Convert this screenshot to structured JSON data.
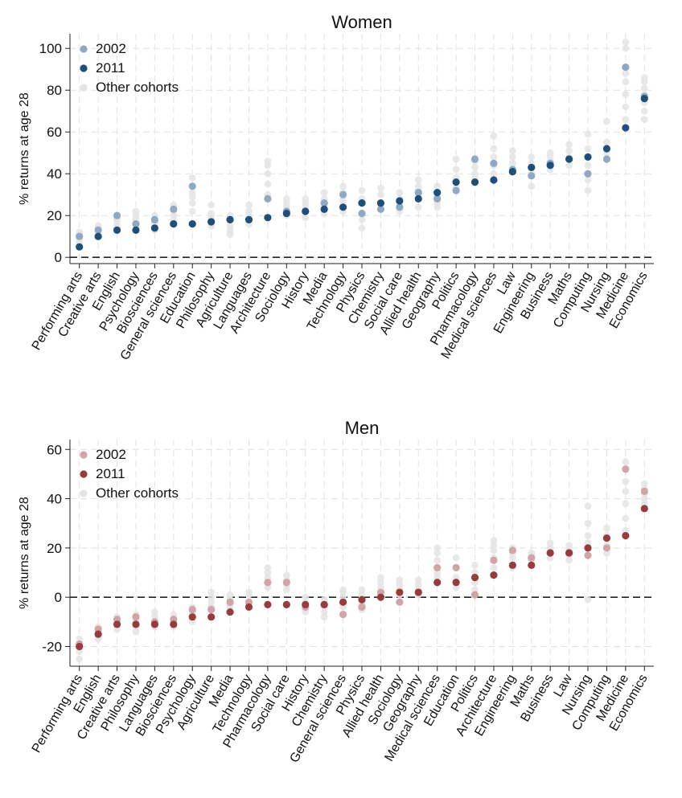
{
  "colors": {
    "women_2011": "#1f4e79",
    "women_2002": "#8fa8c4",
    "men_2011": "#963c3c",
    "men_2002": "#d2a4a8",
    "other": "#e4e4e4",
    "grid": "#e2e2e2"
  },
  "chart_data": [
    {
      "type": "scatter",
      "title": "Women",
      "xlabel": "",
      "ylabel": "% returns at age 28",
      "ylim": [
        -3,
        107
      ],
      "yticks": [
        0,
        20,
        40,
        60,
        80,
        100
      ],
      "grid": true,
      "reference_line_y": 0,
      "legend": {
        "position": "top-left",
        "entries": [
          "2002",
          "2011",
          "Other cohorts"
        ]
      },
      "categories": [
        "Performing arts",
        "Creative arts",
        "English",
        "Psychology",
        "Biosciences",
        "General sciences",
        "Education",
        "Philosophy",
        "Agriculture",
        "Languages",
        "Architecture",
        "Sociology",
        "History",
        "Media",
        "Technology",
        "Physics",
        "Chemistry",
        "Social care",
        "Allied health",
        "Geography",
        "Politics",
        "Pharmacology",
        "Medical sciences",
        "Law",
        "Engineering",
        "Business",
        "Maths",
        "Computing",
        "Nursing",
        "Medicine",
        "Economics"
      ],
      "series": [
        {
          "name": "2002",
          "values": [
            10,
            13,
            20,
            16,
            18,
            23,
            34,
            17,
            18,
            18,
            28,
            22,
            22,
            26,
            30,
            21,
            23,
            24,
            31,
            28,
            32,
            47,
            45,
            42,
            39,
            45,
            47,
            40,
            47,
            91,
            77
          ]
        },
        {
          "name": "2011",
          "values": [
            5,
            10,
            13,
            13,
            14,
            16,
            16,
            17,
            18,
            18,
            19,
            21,
            22,
            23,
            24,
            26,
            26,
            27,
            28,
            31,
            36,
            36,
            37,
            41,
            43,
            44,
            47,
            48,
            52,
            62,
            76
          ]
        }
      ],
      "other_cohorts": [
        [
          7,
          9,
          11,
          12
        ],
        [
          11,
          13,
          14,
          15
        ],
        [
          14,
          16,
          18,
          19
        ],
        [
          15,
          18,
          20,
          22
        ],
        [
          13,
          16,
          17,
          20
        ],
        [
          18,
          20,
          22,
          25
        ],
        [
          22,
          26,
          29,
          31,
          38
        ],
        [
          15,
          19,
          21,
          25
        ],
        [
          11,
          13,
          15,
          20
        ],
        [
          16,
          20,
          22,
          25
        ],
        [
          30,
          35,
          40,
          44,
          46
        ],
        [
          20,
          24,
          26,
          28
        ],
        [
          19,
          24,
          26,
          28
        ],
        [
          21,
          25,
          28,
          31
        ],
        [
          22,
          27,
          31,
          34
        ],
        [
          14,
          18,
          28,
          32
        ],
        [
          23,
          25,
          30,
          33
        ],
        [
          22,
          25,
          28,
          31
        ],
        [
          24,
          30,
          32,
          34,
          37
        ],
        [
          24,
          26,
          29,
          34
        ],
        [
          33,
          38,
          42,
          47
        ],
        [
          38,
          40,
          43,
          46
        ],
        [
          40,
          44,
          48,
          52,
          58
        ],
        [
          42,
          45,
          48,
          51
        ],
        [
          34,
          40,
          45,
          48
        ],
        [
          42,
          46,
          48,
          50
        ],
        [
          44,
          48,
          51,
          54
        ],
        [
          32,
          37,
          44,
          52,
          59
        ],
        [
          47,
          50,
          55,
          65
        ],
        [
          66,
          72,
          78,
          84,
          88,
          100,
          103
        ],
        [
          66,
          70,
          74,
          78,
          81,
          84,
          86
        ]
      ]
    },
    {
      "type": "scatter",
      "title": "Men",
      "xlabel": "",
      "ylabel": "% returns at age 28",
      "ylim": [
        -28,
        64
      ],
      "yticks": [
        -20,
        0,
        20,
        40,
        60
      ],
      "grid": true,
      "reference_line_y": 0,
      "legend": {
        "position": "top-left",
        "entries": [
          "2002",
          "2011",
          "Other cohorts"
        ]
      },
      "categories": [
        "Performing arts",
        "English",
        "Creative arts",
        "Philosophy",
        "Languages",
        "Biosciences",
        "Psychology",
        "Agriculture",
        "Media",
        "Technology",
        "Pharmacology",
        "Social care",
        "History",
        "Chemistry",
        "General sciences",
        "Physics",
        "Allied health",
        "Sociology",
        "Geography",
        "Medical sciences",
        "Education",
        "Politics",
        "Architecture",
        "Engineering",
        "Maths",
        "Business",
        "Law",
        "Nursing",
        "Computing",
        "Medicine",
        "Economics"
      ],
      "series": [
        {
          "name": "2002",
          "values": [
            -19,
            -13,
            -9,
            -8,
            -10,
            -9,
            -5,
            -5,
            -2,
            -2,
            6,
            6,
            -4,
            -3,
            -7,
            -4,
            2,
            -2,
            2,
            12,
            12,
            1,
            15,
            19,
            16,
            18,
            18,
            17,
            20,
            52,
            43
          ]
        },
        {
          "name": "2011",
          "values": [
            -20,
            -15,
            -11,
            -11,
            -11,
            -11,
            -8,
            -8,
            -6,
            -4,
            -3,
            -3,
            -3,
            -3,
            -2,
            -1,
            0,
            2,
            2,
            6,
            6,
            8,
            9,
            13,
            13,
            18,
            18,
            20,
            24,
            25,
            36
          ]
        }
      ],
      "other_cohorts": [
        [
          -17,
          -22,
          -25
        ],
        [
          -12,
          -14,
          -16,
          -17
        ],
        [
          -8,
          -10,
          -12,
          -13
        ],
        [
          -7,
          -9,
          -12,
          -14
        ],
        [
          -6,
          -8,
          -10,
          -12
        ],
        [
          -7,
          -9,
          -10,
          -12
        ],
        [
          -4,
          -6,
          -7,
          -10
        ],
        [
          -2,
          0,
          2,
          -4
        ],
        [
          -3,
          -1,
          1,
          -4
        ],
        [
          -2,
          1,
          2,
          -3
        ],
        [
          4,
          8,
          10,
          12
        ],
        [
          5,
          7,
          9,
          3
        ],
        [
          -2,
          -5,
          -6,
          0
        ],
        [
          -1,
          -4,
          -6,
          -8
        ],
        [
          -4,
          0,
          2,
          3
        ],
        [
          -3,
          -5,
          1,
          3
        ],
        [
          2,
          4,
          6,
          8
        ],
        [
          1,
          3,
          5,
          7
        ],
        [
          1,
          3,
          5,
          7
        ],
        [
          8,
          10,
          15,
          18,
          20
        ],
        [
          4,
          8,
          12,
          16
        ],
        [
          3,
          6,
          10,
          13
        ],
        [
          12,
          16,
          19,
          21,
          23
        ],
        [
          12,
          16,
          18,
          20
        ],
        [
          13,
          15,
          17,
          18
        ],
        [
          16,
          18,
          20,
          22
        ],
        [
          15,
          17,
          19,
          21
        ],
        [
          -1,
          22,
          25,
          30,
          37
        ],
        [
          18,
          21,
          25,
          28
        ],
        [
          27,
          32,
          38,
          43,
          47,
          52,
          55
        ],
        [
          38,
          40,
          42,
          44,
          46
        ]
      ]
    }
  ]
}
